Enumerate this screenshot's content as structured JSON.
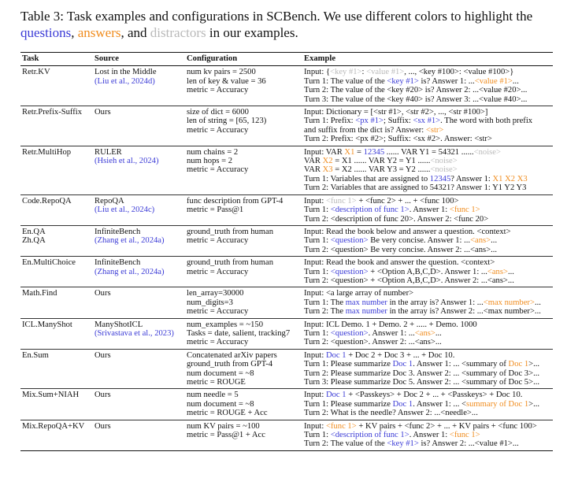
{
  "caption": {
    "prefix": "Table 3: Task examples and configurations in SCBench. We use different colors to highlight the ",
    "q": "questions",
    "sep1": ", ",
    "a": "answers",
    "sep2": ", and ",
    "d": "distractors",
    "suffix": " in our examples."
  },
  "headers": [
    "Task",
    "Source",
    "Configuration",
    "Example"
  ],
  "colors": {
    "question": "#3a3ad6",
    "answer": "#f08c1e",
    "distractor": "#b9b9b9",
    "citation": "#3a3ad6"
  },
  "rows": [
    {
      "task": [
        "Retr.KV"
      ],
      "source": [
        "Lost in the Middle",
        "(Liu et al., 2024d)"
      ],
      "config": [
        "num kv pairs = 2500",
        "len of key & value = 36",
        "metric = Accuracy"
      ],
      "example": [
        [
          [
            "t",
            "Input: {"
          ],
          [
            "d",
            "<key #1>"
          ],
          [
            "t",
            ": "
          ],
          [
            "d",
            "<value #1>"
          ],
          [
            "t",
            ", ..., <key #100>: <value #100>}"
          ]
        ],
        [
          [
            "t",
            "Turn 1: The value of the "
          ],
          [
            "q",
            "<key #1>"
          ],
          [
            "t",
            " is? Answer 1: ..."
          ],
          [
            "a",
            "<value #1>"
          ],
          [
            "t",
            "..."
          ]
        ],
        [
          [
            "t",
            "Turn 2: The value of the <key #20> is? Answer 2: ...<value #20>..."
          ]
        ],
        [
          [
            "t",
            "Turn 3: The value of the <key #40> is? Answer 3: ...<value #40>..."
          ]
        ]
      ]
    },
    {
      "task": [
        "Retr.Prefix-Suffix"
      ],
      "source": [
        "Ours"
      ],
      "config": [
        "size of dict = 6000",
        "len of string = [65, 123)",
        "metric = Accuracy"
      ],
      "example": [
        [
          [
            "t",
            "Input: Dictionary = [<str #1>, <str #2>, ..., <str #100>]"
          ]
        ],
        [
          [
            "t",
            "Turn 1: Prefix: "
          ],
          [
            "q",
            "<px #1>"
          ],
          [
            "t",
            "; Suffix: "
          ],
          [
            "q",
            "<sx #1>"
          ],
          [
            "t",
            ". The word with both prefix"
          ]
        ],
        [
          [
            "t",
            "and suffix from the dict is? Answer: "
          ],
          [
            "a",
            "<str>"
          ]
        ],
        [
          [
            "t",
            "Turn 2: Prefix: <px #2>; Suffix: <sx #2>. Answer: <str>"
          ]
        ]
      ]
    },
    {
      "task": [
        "Retr.MultiHop"
      ],
      "source": [
        "RULER",
        "(Hsieh et al., 2024)"
      ],
      "config": [
        "num chains = 2",
        "num hops = 2",
        "metric = Accuracy"
      ],
      "example": [
        [
          [
            "t",
            "Input: VAR "
          ],
          [
            "a",
            "X1"
          ],
          [
            "t",
            " = "
          ],
          [
            "q",
            "12345"
          ],
          [
            "t",
            " ...... VAR Y1 = 54321 ......"
          ],
          [
            "d",
            "<noise>"
          ]
        ],
        [
          [
            "t",
            "VAR "
          ],
          [
            "a",
            "X2"
          ],
          [
            "t",
            " = X1 ...... VAR Y2 = Y1 ......"
          ],
          [
            "d",
            "<noise>"
          ]
        ],
        [
          [
            "t",
            "VAR "
          ],
          [
            "a",
            "X3"
          ],
          [
            "t",
            " = X2 ...... VAR Y3 = Y2 ......"
          ],
          [
            "d",
            "<noise>"
          ]
        ],
        [
          [
            "t",
            "Turn 1: Variables that are assigned to "
          ],
          [
            "q",
            "12345"
          ],
          [
            "t",
            "? Answer 1: "
          ],
          [
            "a",
            "X1 X2 X3"
          ]
        ],
        [
          [
            "t",
            "Turn 2: Variables that are assigned to 54321? Answer 1: Y1 Y2 Y3"
          ]
        ]
      ]
    },
    {
      "task": [
        "Code.RepoQA"
      ],
      "source": [
        "RepoQA",
        "(Liu et al., 2024c)"
      ],
      "config": [
        "func description from GPT-4",
        "metric = Pass@1"
      ],
      "example": [
        [
          [
            "t",
            "Input: "
          ],
          [
            "d",
            "<func 1>"
          ],
          [
            "t",
            " + <func 2> + ... + <func 100>"
          ]
        ],
        [
          [
            "t",
            "Turn 1: "
          ],
          [
            "q",
            "<description of func 1>"
          ],
          [
            "t",
            ". Answer 1: "
          ],
          [
            "a",
            "<func 1>"
          ]
        ],
        [
          [
            "t",
            "Turn 2: <description of func 20>. Answer 2: <func 20>"
          ]
        ]
      ]
    },
    {
      "task": [
        "En.QA",
        "Zh.QA"
      ],
      "source": [
        "InfiniteBench",
        "(Zhang et al., 2024a)"
      ],
      "config": [
        "ground_truth from human",
        "metric = Accuracy"
      ],
      "example": [
        [
          [
            "t",
            "Input: Read the book below and answer a question. <context>"
          ]
        ],
        [
          [
            "t",
            "Turn 1: "
          ],
          [
            "q",
            "<question>"
          ],
          [
            "t",
            " Be very concise. Answer 1: ..."
          ],
          [
            "a",
            "<ans>"
          ],
          [
            "t",
            "..."
          ]
        ],
        [
          [
            "t",
            "Turn 2: <question> Be very concise. Answer 2: ...<ans>..."
          ]
        ]
      ]
    },
    {
      "task": [
        "En.MultiChoice"
      ],
      "source": [
        "InfiniteBench",
        "(Zhang et al., 2024a)"
      ],
      "config": [
        "ground_truth from human",
        "metric = Accuracy"
      ],
      "example": [
        [
          [
            "t",
            "Input: Read the book and answer the question. <context>"
          ]
        ],
        [
          [
            "t",
            "Turn 1: "
          ],
          [
            "q",
            "<question>"
          ],
          [
            "t",
            " + <Option A,B,C,D>. Answer 1: ..."
          ],
          [
            "a",
            "<ans>"
          ],
          [
            "t",
            "..."
          ]
        ],
        [
          [
            "t",
            "Turn 2: <question> + <Option A,B,C,D>. Answer 2: ...<ans>..."
          ]
        ]
      ]
    },
    {
      "task": [
        "Math.Find"
      ],
      "source": [
        "Ours"
      ],
      "config": [
        "len_array=30000",
        "num_digits=3",
        "metric = Accuracy"
      ],
      "example": [
        [
          [
            "t",
            "Input: <a large array of number>"
          ]
        ],
        [
          [
            "t",
            "Turn 1: The "
          ],
          [
            "q",
            "max number"
          ],
          [
            "t",
            " in the array is? Answer 1: ..."
          ],
          [
            "a",
            "<max number>"
          ],
          [
            "t",
            "..."
          ]
        ],
        [
          [
            "t",
            "Turn 2: The "
          ],
          [
            "q",
            "max number"
          ],
          [
            "t",
            " in the array is? Answer 2: ...<max number>..."
          ]
        ]
      ]
    },
    {
      "task": [
        "ICL.ManyShot"
      ],
      "source": [
        "ManyShotICL",
        "(Srivastava et al., 2023)"
      ],
      "config": [
        "num_examples = ~150",
        "Tasks = date, salient, tracking7",
        "metric = Accuracy"
      ],
      "example": [
        [
          [
            "t",
            "Input: ICL Demo. 1 + Demo. 2 + ..... + Demo. 1000"
          ]
        ],
        [
          [
            "t",
            "Turn 1: "
          ],
          [
            "q",
            "<question>"
          ],
          [
            "t",
            ". Answer 1: ..."
          ],
          [
            "a",
            "<ans>"
          ],
          [
            "t",
            "..."
          ]
        ],
        [
          [
            "t",
            "Turn 2: <question>. Answer 2: ...<ans>..."
          ]
        ]
      ]
    },
    {
      "task": [
        "En.Sum"
      ],
      "source": [
        "Ours"
      ],
      "config": [
        "Concatenated arXiv papers",
        "ground_truth from GPT-4",
        "num document = ~8",
        "metric = ROUGE"
      ],
      "example": [
        [
          [
            "t",
            "Input: "
          ],
          [
            "q",
            "Doc 1"
          ],
          [
            "t",
            " + Doc 2 + Doc 3 + ... + Doc 10."
          ]
        ],
        [
          [
            "t",
            "Turn 1: Please summarize "
          ],
          [
            "q",
            "Doc 1"
          ],
          [
            "t",
            ". Answer 1: ... <summary of "
          ],
          [
            "a",
            "Doc 1"
          ],
          [
            "t",
            ">..."
          ]
        ],
        [
          [
            "t",
            "Turn 2: Please summarize Doc 3. Answer 2: ... <summary of Doc 3>..."
          ]
        ],
        [
          [
            "t",
            "Turn 3: Please summarize Doc 5. Answer 2: ... <summary of Doc 5>..."
          ]
        ]
      ]
    },
    {
      "task": [
        "Mix.Sum+NIAH"
      ],
      "source": [
        "Ours"
      ],
      "config": [
        "num needle = 5",
        "num document = ~8",
        "metric = ROUGE + Acc"
      ],
      "example": [
        [
          [
            "t",
            "Input: "
          ],
          [
            "q",
            "Doc 1"
          ],
          [
            "t",
            " + <Passkeys> + Doc 2 + ... + <Passkeys> + Doc 10."
          ]
        ],
        [
          [
            "t",
            "Turn 1: Please summarize "
          ],
          [
            "q",
            "Doc 1"
          ],
          [
            "t",
            ". Answer 1: ... <"
          ],
          [
            "a",
            "summary of Doc 1"
          ],
          [
            "t",
            ">..."
          ]
        ],
        [
          [
            "t",
            "Turn 2: What is the needle? Answer 2: ...<needle>..."
          ]
        ]
      ]
    },
    {
      "task": [
        "Mix.RepoQA+KV"
      ],
      "source": [
        "Ours"
      ],
      "config": [
        "num KV pairs = ~100",
        "metric = Pass@1 + Acc"
      ],
      "example": [
        [
          [
            "t",
            "Input: "
          ],
          [
            "a",
            "<func 1>"
          ],
          [
            "t",
            " + KV pairs + <func 2> + ... + KV pairs + <func 100>"
          ]
        ],
        [
          [
            "t",
            "Turn 1: "
          ],
          [
            "q",
            "<description of func 1>"
          ],
          [
            "t",
            ". Answer 1: "
          ],
          [
            "a",
            "<func 1>"
          ]
        ],
        [
          [
            "t",
            "Turn 2: The value of the "
          ],
          [
            "q",
            "<key #1>"
          ],
          [
            "t",
            " is? Answer 2: ...<value #1>..."
          ]
        ]
      ]
    }
  ]
}
